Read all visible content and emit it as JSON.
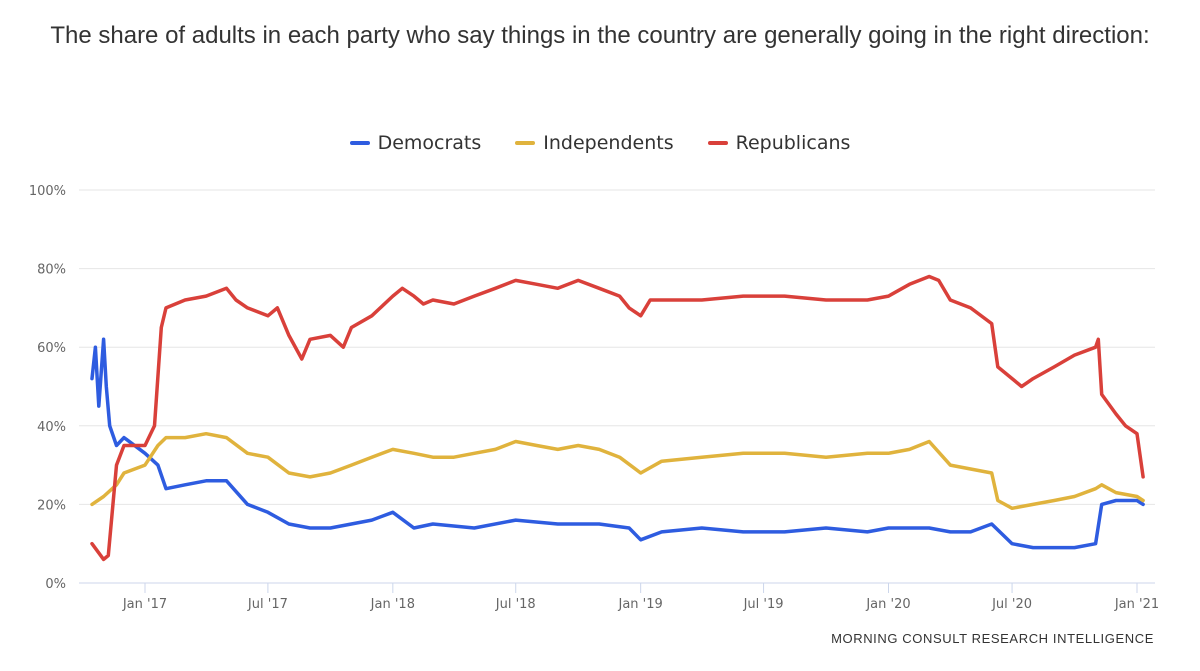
{
  "chart_data": {
    "type": "line",
    "title": "The share of adults in each party who say things in the country are generally going in the right direction:",
    "xlabel": "",
    "ylabel": "",
    "ylim": [
      0,
      100
    ],
    "y_ticks": [
      0,
      20,
      40,
      60,
      80,
      100
    ],
    "y_tick_labels": [
      "0%",
      "20%",
      "40%",
      "60%",
      "80%",
      "100%"
    ],
    "x_ticks": [
      "2017-01-01",
      "2017-07-01",
      "2018-01-01",
      "2018-07-01",
      "2019-01-01",
      "2019-07-01",
      "2020-01-01",
      "2020-07-01",
      "2021-01-01"
    ],
    "x_tick_labels": [
      "Jan '17",
      "Jul '17",
      "Jan '18",
      "Jul '18",
      "Jan '19",
      "Jul '19",
      "Jan '20",
      "Jul '20",
      "Jan '21"
    ],
    "xlim": [
      "2016-10-10",
      "2021-01-20"
    ],
    "grid": true,
    "legend_placement": "top-center",
    "series": [
      {
        "name": "Democrats",
        "color": "#2e5ce0",
        "points": [
          [
            "2016-10-15",
            52
          ],
          [
            "2016-10-20",
            60
          ],
          [
            "2016-10-25",
            45
          ],
          [
            "2016-11-01",
            62
          ],
          [
            "2016-11-05",
            50
          ],
          [
            "2016-11-10",
            40
          ],
          [
            "2016-11-20",
            35
          ],
          [
            "2016-12-01",
            37
          ],
          [
            "2017-01-01",
            33
          ],
          [
            "2017-01-20",
            30
          ],
          [
            "2017-02-01",
            24
          ],
          [
            "2017-03-01",
            25
          ],
          [
            "2017-04-01",
            26
          ],
          [
            "2017-05-01",
            26
          ],
          [
            "2017-06-01",
            20
          ],
          [
            "2017-07-01",
            18
          ],
          [
            "2017-08-01",
            15
          ],
          [
            "2017-09-01",
            14
          ],
          [
            "2017-10-01",
            14
          ],
          [
            "2017-11-01",
            15
          ],
          [
            "2017-12-01",
            16
          ],
          [
            "2018-01-01",
            18
          ],
          [
            "2018-02-01",
            14
          ],
          [
            "2018-03-01",
            15
          ],
          [
            "2018-05-01",
            14
          ],
          [
            "2018-07-01",
            16
          ],
          [
            "2018-09-01",
            15
          ],
          [
            "2018-11-01",
            15
          ],
          [
            "2018-12-15",
            14
          ],
          [
            "2019-01-01",
            11
          ],
          [
            "2019-02-01",
            13
          ],
          [
            "2019-04-01",
            14
          ],
          [
            "2019-06-01",
            13
          ],
          [
            "2019-08-01",
            13
          ],
          [
            "2019-10-01",
            14
          ],
          [
            "2019-12-01",
            13
          ],
          [
            "2020-01-01",
            14
          ],
          [
            "2020-02-01",
            14
          ],
          [
            "2020-03-01",
            14
          ],
          [
            "2020-04-01",
            13
          ],
          [
            "2020-05-01",
            13
          ],
          [
            "2020-06-01",
            15
          ],
          [
            "2020-07-01",
            10
          ],
          [
            "2020-08-01",
            9
          ],
          [
            "2020-09-01",
            9
          ],
          [
            "2020-10-01",
            9
          ],
          [
            "2020-11-01",
            10
          ],
          [
            "2020-11-10",
            20
          ],
          [
            "2020-12-01",
            21
          ],
          [
            "2021-01-01",
            21
          ],
          [
            "2021-01-10",
            20
          ]
        ]
      },
      {
        "name": "Independents",
        "color": "#e0b33d",
        "points": [
          [
            "2016-10-15",
            20
          ],
          [
            "2016-11-01",
            22
          ],
          [
            "2016-11-20",
            25
          ],
          [
            "2016-12-01",
            28
          ],
          [
            "2017-01-01",
            30
          ],
          [
            "2017-01-20",
            35
          ],
          [
            "2017-02-01",
            37
          ],
          [
            "2017-03-01",
            37
          ],
          [
            "2017-04-01",
            38
          ],
          [
            "2017-05-01",
            37
          ],
          [
            "2017-06-01",
            33
          ],
          [
            "2017-07-01",
            32
          ],
          [
            "2017-08-01",
            28
          ],
          [
            "2017-09-01",
            27
          ],
          [
            "2017-10-01",
            28
          ],
          [
            "2017-11-01",
            30
          ],
          [
            "2017-12-01",
            32
          ],
          [
            "2018-01-01",
            34
          ],
          [
            "2018-02-01",
            33
          ],
          [
            "2018-03-01",
            32
          ],
          [
            "2018-04-01",
            32
          ],
          [
            "2018-05-01",
            33
          ],
          [
            "2018-06-01",
            34
          ],
          [
            "2018-07-01",
            36
          ],
          [
            "2018-08-01",
            35
          ],
          [
            "2018-09-01",
            34
          ],
          [
            "2018-10-01",
            35
          ],
          [
            "2018-11-01",
            34
          ],
          [
            "2018-12-01",
            32
          ],
          [
            "2019-01-01",
            28
          ],
          [
            "2019-02-01",
            31
          ],
          [
            "2019-04-01",
            32
          ],
          [
            "2019-06-01",
            33
          ],
          [
            "2019-08-01",
            33
          ],
          [
            "2019-10-01",
            32
          ],
          [
            "2019-12-01",
            33
          ],
          [
            "2020-01-01",
            33
          ],
          [
            "2020-02-01",
            34
          ],
          [
            "2020-03-01",
            36
          ],
          [
            "2020-04-01",
            30
          ],
          [
            "2020-05-01",
            29
          ],
          [
            "2020-06-01",
            28
          ],
          [
            "2020-06-10",
            21
          ],
          [
            "2020-07-01",
            19
          ],
          [
            "2020-08-01",
            20
          ],
          [
            "2020-09-01",
            21
          ],
          [
            "2020-10-01",
            22
          ],
          [
            "2020-11-01",
            24
          ],
          [
            "2020-11-10",
            25
          ],
          [
            "2020-12-01",
            23
          ],
          [
            "2021-01-01",
            22
          ],
          [
            "2021-01-10",
            21
          ]
        ]
      },
      {
        "name": "Republicans",
        "color": "#d9403a",
        "points": [
          [
            "2016-10-15",
            10
          ],
          [
            "2016-11-01",
            6
          ],
          [
            "2016-11-08",
            7
          ],
          [
            "2016-11-20",
            30
          ],
          [
            "2016-12-01",
            35
          ],
          [
            "2017-01-01",
            35
          ],
          [
            "2017-01-15",
            40
          ],
          [
            "2017-01-25",
            65
          ],
          [
            "2017-02-01",
            70
          ],
          [
            "2017-03-01",
            72
          ],
          [
            "2017-04-01",
            73
          ],
          [
            "2017-05-01",
            75
          ],
          [
            "2017-05-15",
            72
          ],
          [
            "2017-06-01",
            70
          ],
          [
            "2017-07-01",
            68
          ],
          [
            "2017-07-15",
            70
          ],
          [
            "2017-08-01",
            63
          ],
          [
            "2017-08-20",
            57
          ],
          [
            "2017-09-01",
            62
          ],
          [
            "2017-10-01",
            63
          ],
          [
            "2017-10-20",
            60
          ],
          [
            "2017-11-01",
            65
          ],
          [
            "2017-12-01",
            68
          ],
          [
            "2018-01-01",
            73
          ],
          [
            "2018-01-15",
            75
          ],
          [
            "2018-02-01",
            73
          ],
          [
            "2018-02-15",
            71
          ],
          [
            "2018-03-01",
            72
          ],
          [
            "2018-04-01",
            71
          ],
          [
            "2018-05-01",
            73
          ],
          [
            "2018-06-01",
            75
          ],
          [
            "2018-07-01",
            77
          ],
          [
            "2018-08-01",
            76
          ],
          [
            "2018-09-01",
            75
          ],
          [
            "2018-10-01",
            77
          ],
          [
            "2018-11-01",
            75
          ],
          [
            "2018-12-01",
            73
          ],
          [
            "2018-12-15",
            70
          ],
          [
            "2019-01-01",
            68
          ],
          [
            "2019-01-15",
            72
          ],
          [
            "2019-04-01",
            72
          ],
          [
            "2019-06-01",
            73
          ],
          [
            "2019-08-01",
            73
          ],
          [
            "2019-10-01",
            72
          ],
          [
            "2019-12-01",
            72
          ],
          [
            "2020-01-01",
            73
          ],
          [
            "2020-02-01",
            76
          ],
          [
            "2020-03-01",
            78
          ],
          [
            "2020-03-15",
            77
          ],
          [
            "2020-04-01",
            72
          ],
          [
            "2020-05-01",
            70
          ],
          [
            "2020-06-01",
            66
          ],
          [
            "2020-06-10",
            55
          ],
          [
            "2020-07-01",
            52
          ],
          [
            "2020-07-15",
            50
          ],
          [
            "2020-08-01",
            52
          ],
          [
            "2020-09-01",
            55
          ],
          [
            "2020-10-01",
            58
          ],
          [
            "2020-11-01",
            60
          ],
          [
            "2020-11-05",
            62
          ],
          [
            "2020-11-10",
            48
          ],
          [
            "2020-12-01",
            43
          ],
          [
            "2020-12-15",
            40
          ],
          [
            "2021-01-01",
            38
          ],
          [
            "2021-01-10",
            27
          ]
        ]
      }
    ],
    "source_note": "MORNING CONSULT RESEARCH INTELLIGENCE"
  }
}
